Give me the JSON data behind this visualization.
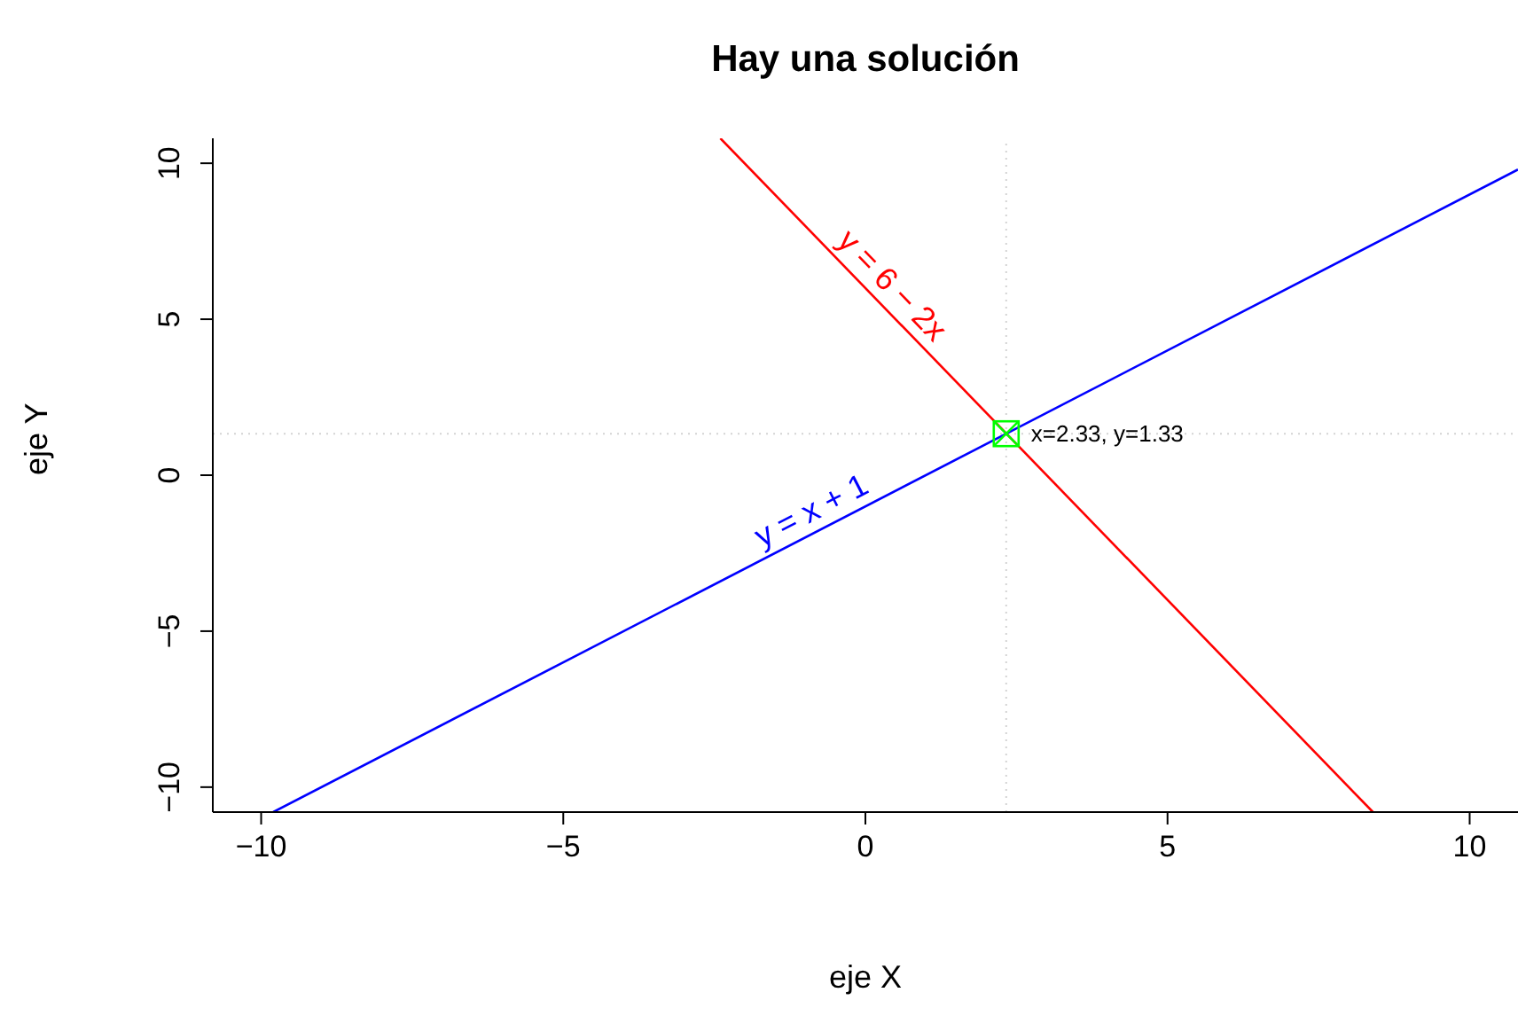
{
  "chart_data": {
    "type": "line",
    "title": "Hay una solución",
    "xlabel": "eje X",
    "ylabel": "eje Y",
    "xlim": [
      -10.8,
      10.8
    ],
    "ylim": [
      -10.8,
      10.8
    ],
    "xticks": [
      {
        "value": -10,
        "label": "−10"
      },
      {
        "value": -5,
        "label": "−5"
      },
      0,
      5,
      10
    ],
    "yticks": [
      {
        "value": -10,
        "label": "−10"
      },
      {
        "value": -5,
        "label": "−5"
      },
      0,
      5,
      10
    ],
    "series": [
      {
        "name": "y = x + 1",
        "color": "#0000ff",
        "x": [
          -9.8,
          10.8
        ],
        "values": [
          -10.8,
          9.8
        ]
      },
      {
        "name": "y = 6 − 2x",
        "color": "#ff0000",
        "x": [
          -2.4,
          8.4
        ],
        "values": [
          10.8,
          -10.8
        ]
      },
      {
        "type": "scatter",
        "color": "#00ff00",
        "marker": "square",
        "x": [
          2.33
        ],
        "values": [
          1.33
        ]
      }
    ],
    "ref_lines": [
      {
        "axis": "x",
        "value": 2.33,
        "color": "#d3d3d3",
        "line_style": "dotted"
      },
      {
        "axis": "y",
        "value": 1.33,
        "color": "#d3d3d3",
        "line_style": "dotted"
      }
    ],
    "annotations": [
      {
        "text": "x=2.33, y=1.33",
        "x": 2.33,
        "y": 1.33
      }
    ]
  }
}
